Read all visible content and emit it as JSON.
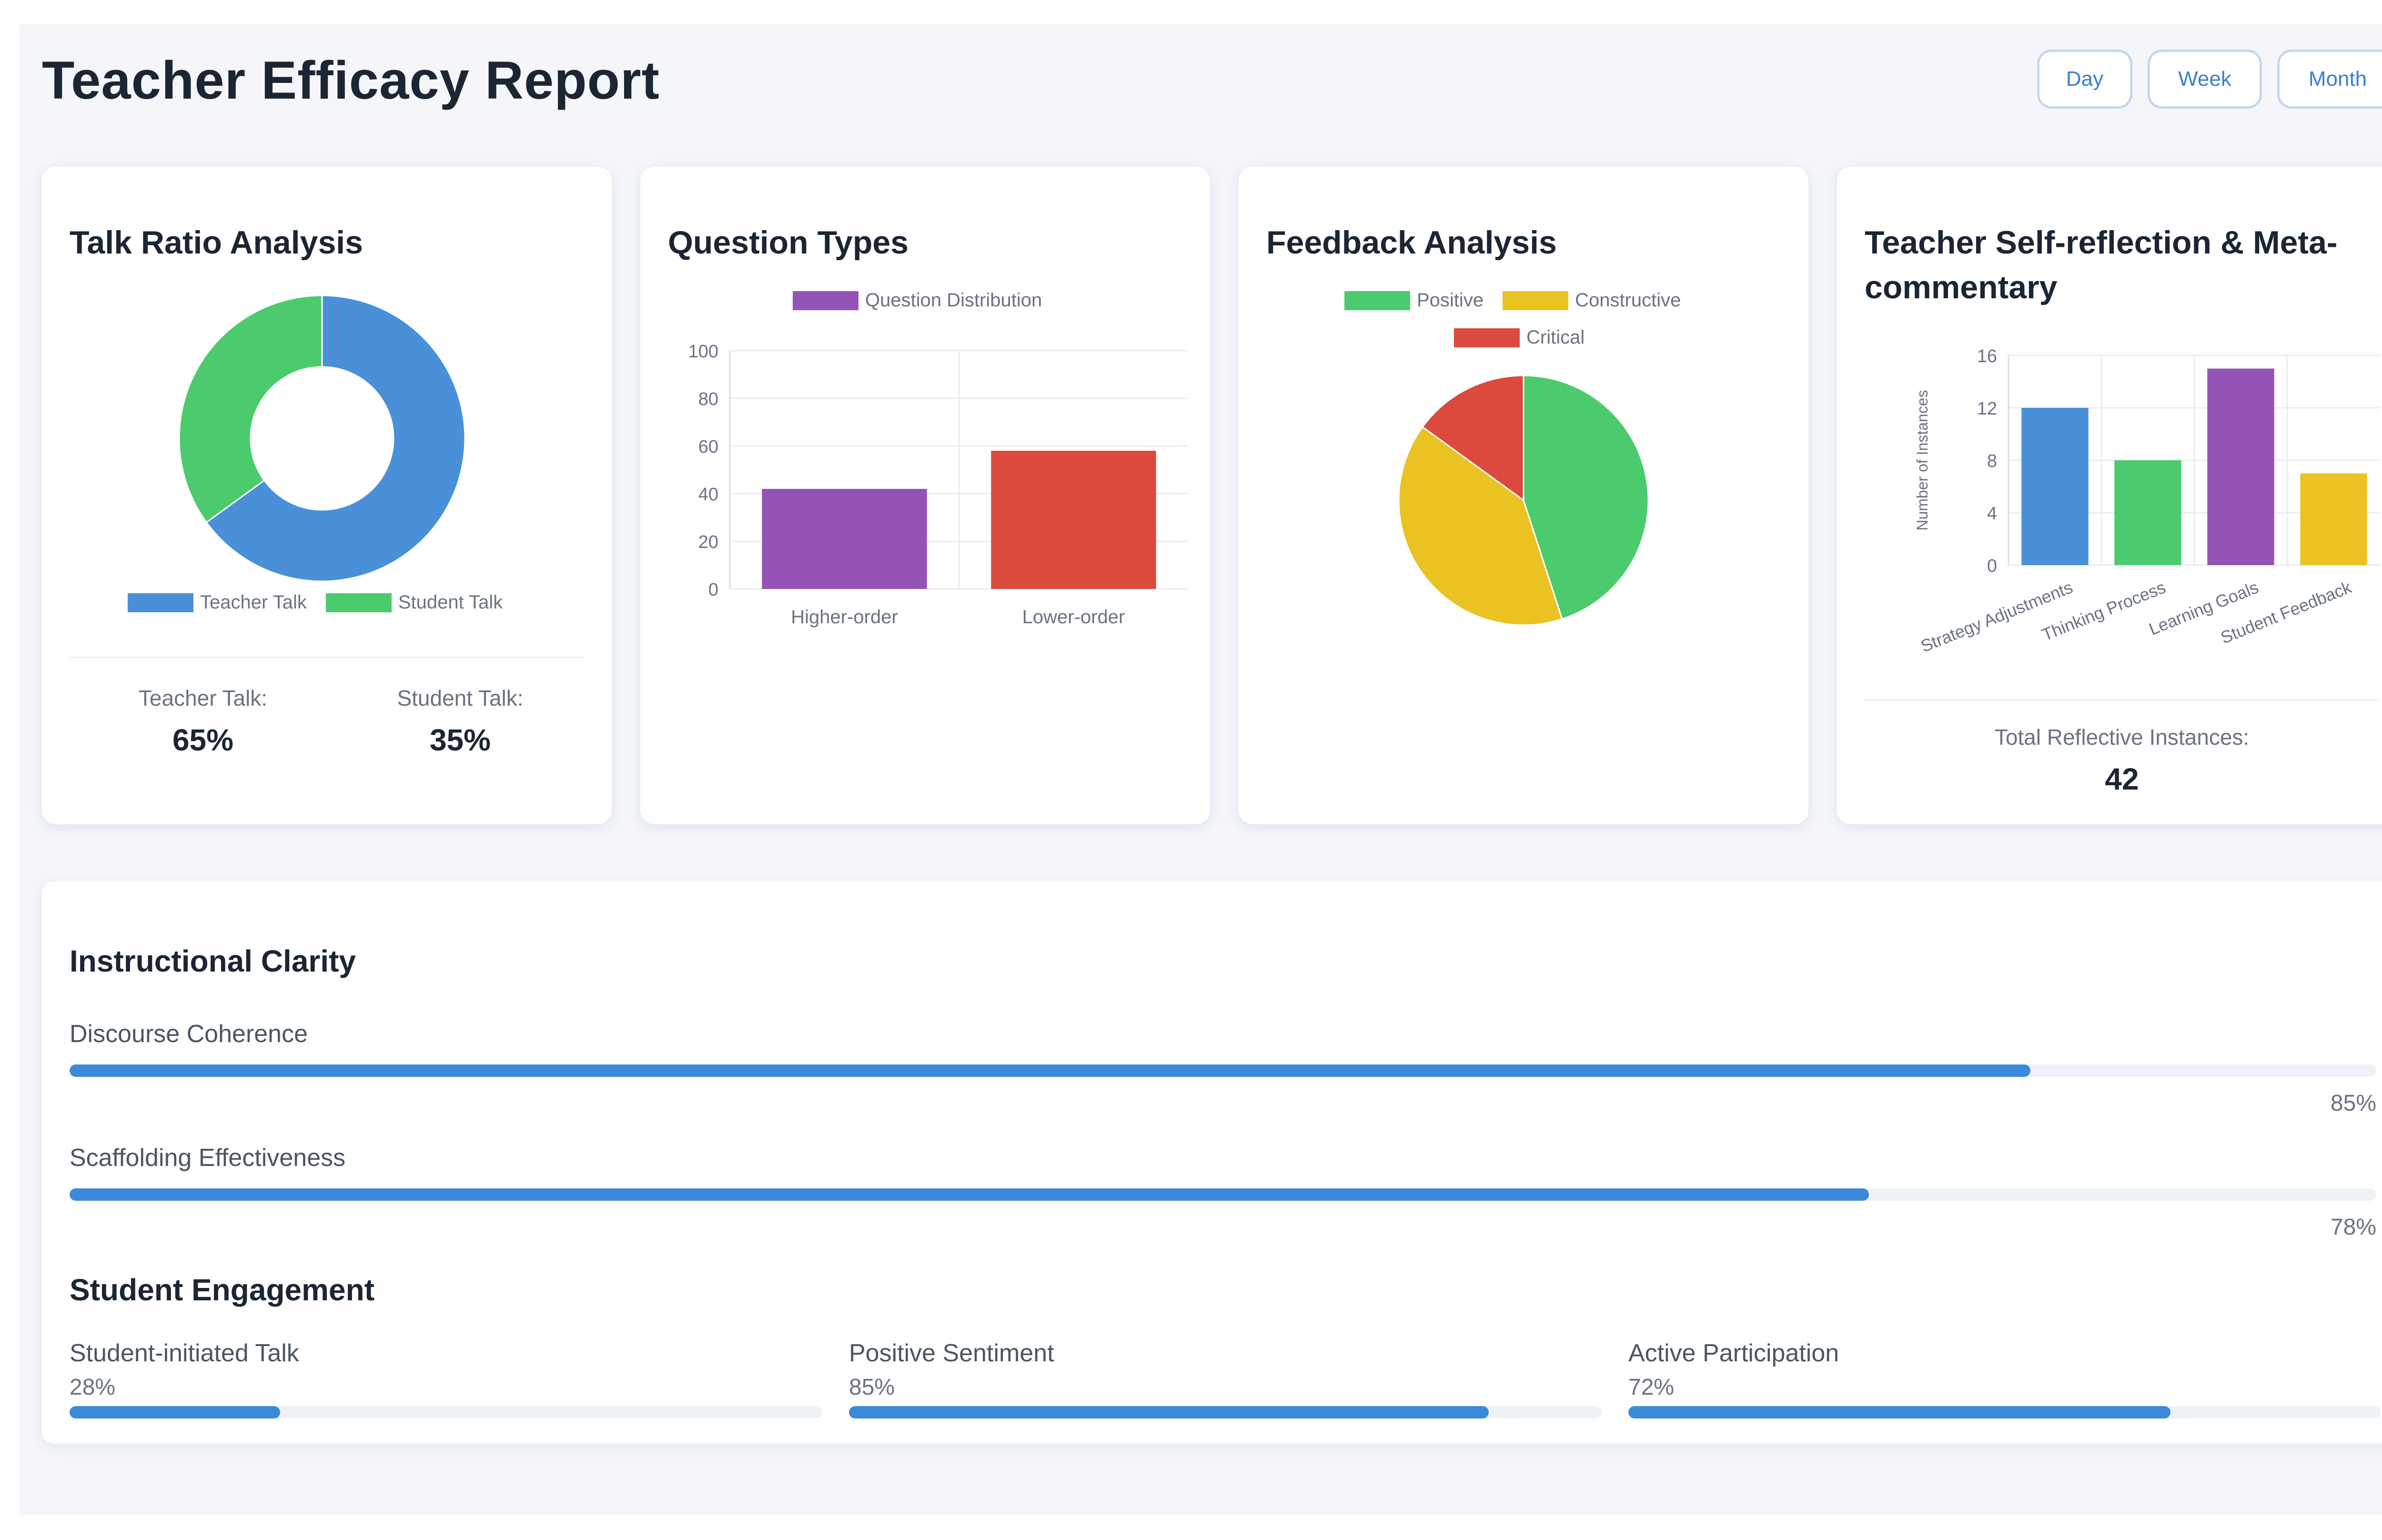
{
  "header": {
    "title": "Teacher Efficacy Report",
    "filters": [
      "Day",
      "Week",
      "Month"
    ]
  },
  "colors": {
    "blue": "#4a90d9",
    "green": "#4ccb6e",
    "purple": "#9553b5",
    "red": "#dc4a3d",
    "yellow": "#eac322",
    "progress": "#3b8ad9"
  },
  "talk_ratio": {
    "title": "Talk Ratio Analysis",
    "teacher_label": "Teacher Talk:",
    "teacher_value": "65%",
    "student_label": "Student Talk:",
    "student_value": "35%"
  },
  "question_types": {
    "title": "Question Types"
  },
  "feedback": {
    "title": "Feedback Analysis"
  },
  "reflection": {
    "title": "Teacher Self-reflection & Meta-commentary",
    "total_label": "Total Reflective Instances:",
    "total_value": "42"
  },
  "clarity": {
    "title": "Instructional Clarity",
    "metrics": [
      {
        "label": "Discourse Coherence",
        "value": 85,
        "pct": "85%"
      },
      {
        "label": "Scaffolding Effectiveness",
        "value": 78,
        "pct": "78%"
      }
    ]
  },
  "engagement": {
    "title": "Student Engagement",
    "metrics": [
      {
        "label": "Student-initiated Talk",
        "value": 28,
        "pct": "28%"
      },
      {
        "label": "Positive Sentiment",
        "value": 85,
        "pct": "85%"
      },
      {
        "label": "Active Participation",
        "value": 72,
        "pct": "72%"
      }
    ]
  },
  "chart_data": [
    {
      "type": "pie",
      "variant": "doughnut",
      "categories": [
        "Teacher Talk",
        "Student Talk"
      ],
      "values": [
        65,
        35
      ],
      "colors": [
        "#4a90d9",
        "#4ccb6e"
      ],
      "legend": "bottom"
    },
    {
      "type": "bar",
      "categories": [
        "Higher-order",
        "Lower-order"
      ],
      "series": [
        {
          "name": "Question Distribution",
          "values": [
            42,
            58
          ]
        }
      ],
      "colors": [
        "#9553b5",
        "#dc4a3d"
      ],
      "ylim": [
        0,
        100
      ],
      "yticks": [
        0,
        20,
        40,
        60,
        80,
        100
      ],
      "grid": true,
      "legend": "top"
    },
    {
      "type": "pie",
      "categories": [
        "Positive",
        "Constructive",
        "Critical"
      ],
      "values": [
        45,
        40,
        15
      ],
      "colors": [
        "#4ccb6e",
        "#eac322",
        "#dc4a3d"
      ],
      "legend": "top"
    },
    {
      "type": "bar",
      "categories": [
        "Strategy Adjustments",
        "Thinking Process",
        "Learning Goals",
        "Student Feedback"
      ],
      "values": [
        12,
        8,
        15,
        7
      ],
      "colors": [
        "#4a90d9",
        "#4ccb6e",
        "#9553b5",
        "#eac322"
      ],
      "ylabel": "Number of Instances",
      "ylim": [
        0,
        16
      ],
      "yticks": [
        0,
        4,
        8,
        12,
        16
      ],
      "grid": true
    }
  ]
}
